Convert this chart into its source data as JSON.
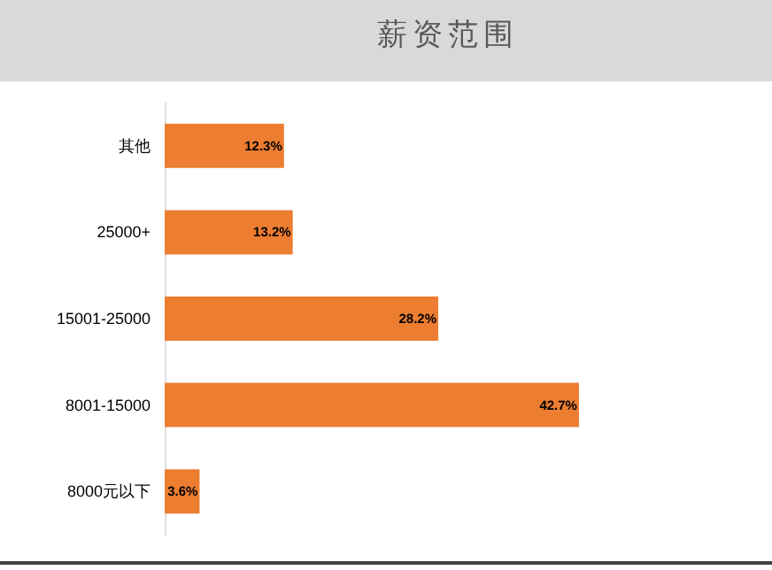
{
  "chart_data": {
    "type": "bar",
    "orientation": "horizontal",
    "title": "薪资范围",
    "categories": [
      "其他",
      "25000+",
      "15001-25000",
      "8001-15000",
      "8000元以下"
    ],
    "values": [
      12.3,
      13.2,
      28.2,
      42.7,
      3.6
    ],
    "color": "#ed7d31",
    "value_labels": [
      "12.3%",
      "13.2%",
      "28.2%",
      "42.7%",
      "3.6%"
    ],
    "grid": false
  }
}
